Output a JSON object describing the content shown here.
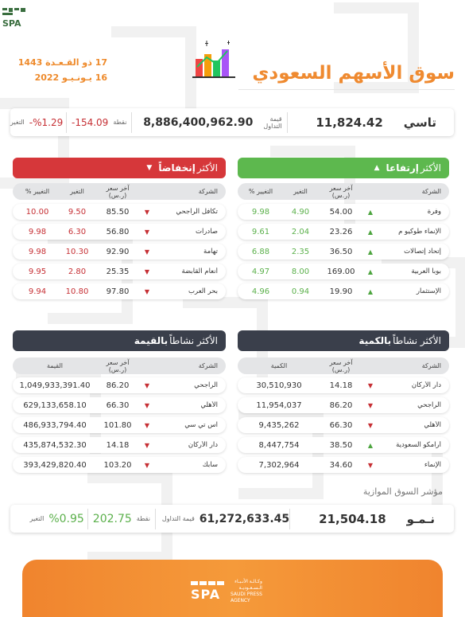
{
  "header": {
    "hijri_date": "17 ذو القـعـدة 1443",
    "gregorian_date": "16 يـونـيـو 2022",
    "title": "سوق الأسهم السعودي"
  },
  "main_index": {
    "name": "تاسي",
    "value": "11,824.42",
    "turnover_label": "قيمة التداول",
    "turnover": "8,886,400,962.90",
    "points_label": "نقطة",
    "points": "154.09-",
    "change_label": "التغير",
    "change": "%1.29-"
  },
  "gainers": {
    "title_prefix": "الأكثر",
    "title_main": "إرتفاعا",
    "headers": {
      "company": "الشركة",
      "price": "آخر سعر (ر.س)",
      "change": "التغير",
      "pct": "التغيير %"
    },
    "rows": [
      {
        "company": "وفرة",
        "price": "54.00",
        "change": "4.90",
        "pct": "9.98"
      },
      {
        "company": "الإنماء طوكيو م",
        "price": "23.26",
        "change": "2.04",
        "pct": "9.61"
      },
      {
        "company": "إتحاد إتصالات",
        "price": "36.50",
        "change": "2.35",
        "pct": "6.88"
      },
      {
        "company": "بوبا العربية",
        "price": "169.00",
        "change": "8.00",
        "pct": "4.97"
      },
      {
        "company": "الإستثمار",
        "price": "19.90",
        "change": "0.94",
        "pct": "4.96"
      }
    ]
  },
  "losers": {
    "title_prefix": "الأكثر",
    "title_main": "إنخفاضاً",
    "headers": {
      "company": "الشركة",
      "price": "آخر سعر (ر.س)",
      "change": "التغير",
      "pct": "التغيير %"
    },
    "rows": [
      {
        "company": "تكافل الراجحي",
        "price": "85.50",
        "change": "9.50",
        "pct": "10.00"
      },
      {
        "company": "صادرات",
        "price": "56.80",
        "change": "6.30",
        "pct": "9.98"
      },
      {
        "company": "تهامة",
        "price": "92.90",
        "change": "10.30",
        "pct": "9.98"
      },
      {
        "company": "أنعام القابضة",
        "price": "25.35",
        "change": "2.80",
        "pct": "9.95"
      },
      {
        "company": "بحر العرب",
        "price": "97.80",
        "change": "10.80",
        "pct": "9.94"
      }
    ]
  },
  "active_qty": {
    "title_prefix": "الأكثر نشاطاً",
    "title_main": "بالكمية",
    "headers": {
      "company": "الشركة",
      "price": "آخر سعر (ر.س)",
      "qty": "الكمية"
    },
    "rows": [
      {
        "company": "دار الأركان",
        "price": "14.18",
        "trend": "down",
        "qty": "30,510,930"
      },
      {
        "company": "الراجحي",
        "price": "86.20",
        "trend": "down",
        "qty": "11,954,037"
      },
      {
        "company": "الأهلي",
        "price": "66.30",
        "trend": "down",
        "qty": "9,435,262"
      },
      {
        "company": "أرامكو السعودية",
        "price": "38.50",
        "trend": "up",
        "qty": "8,447,754"
      },
      {
        "company": "الإنماء",
        "price": "34.60",
        "trend": "down",
        "qty": "7,302,964"
      }
    ]
  },
  "active_value": {
    "title_prefix": "الأكثر نشاطاً",
    "title_main": "بالقيمة",
    "headers": {
      "company": "الشركة",
      "price": "آخر سعر (ر.س)",
      "value": "القيمة"
    },
    "rows": [
      {
        "company": "الراجحي",
        "price": "86.20",
        "trend": "down",
        "value": "1,049,933,391.40"
      },
      {
        "company": "الأهلي",
        "price": "66.30",
        "trend": "down",
        "value": "629,133,658.10"
      },
      {
        "company": "اس تي سي",
        "price": "101.80",
        "trend": "down",
        "value": "486,933,794.40"
      },
      {
        "company": "دار الأركان",
        "price": "14.18",
        "trend": "down",
        "value": "435,874,532.30"
      },
      {
        "company": "سابك",
        "price": "103.20",
        "trend": "down",
        "value": "393,429,820.40"
      }
    ]
  },
  "parallel": {
    "caption": "مؤشر السوق الموازية",
    "name": "نـمـو",
    "value": "21,504.18",
    "turnover_label": "قيمة التداول",
    "turnover": "61,272,633.45",
    "points_label": "نقطة",
    "points": "202.75",
    "change_label": "التغير",
    "change": "%0.95"
  },
  "footer": {
    "brand": "SPA",
    "line1": "وكـالـة الأنـبـاء",
    "line2": "الـسـعـوديـة",
    "line3": "SAUDI PRESS",
    "line4": "AGENCY"
  },
  "colors": {
    "orange": "#ef8a30",
    "green": "#5db84e",
    "red": "#d6373a",
    "dark": "#3a3f4b"
  }
}
